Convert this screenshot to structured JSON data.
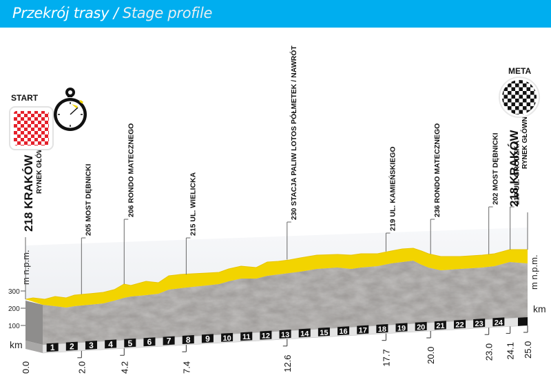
{
  "header": {
    "title_pl": "Przekrój trasy",
    "separator": " / ",
    "title_en": "Stage profile"
  },
  "start": {
    "label": "START",
    "flag": "red-white-checkered-flag"
  },
  "finish": {
    "label": "META",
    "flag": "black-white-checkered-flag"
  },
  "stopwatch": {
    "icon": "stopwatch-icon"
  },
  "axis": {
    "y_unit": "m n.p.m.",
    "y_ticks": [
      "300",
      "200",
      "100"
    ],
    "x_unit": "km",
    "right_y_unit": "m n.p.m.",
    "right_x_unit": "km"
  },
  "waypoints": [
    {
      "name": "218 KRAKÓW",
      "sub": "RYNEK GŁÓWNY",
      "km": "0.0"
    },
    {
      "name": "205 MOST DĘBNICKI",
      "km": "2.0"
    },
    {
      "name": "206 RONDO MATECZNEGO",
      "km": "4.2"
    },
    {
      "name": "215 UL. WIELICKA",
      "km": "7.4"
    },
    {
      "name": "230 STACJA PALIW LOTOS PÓŁMETEK / NAWRÓT",
      "km": "12.6"
    },
    {
      "name": "219 UL. KAMIEŃSKIEGO",
      "km": "17.7"
    },
    {
      "name": "236 RONDO MATECZNEGO",
      "km": "20.0"
    },
    {
      "name": "202 MOST DĘBNICKI",
      "km": "23.0"
    },
    {
      "name": "219 UL. GRODZKA",
      "km": "24.1"
    },
    {
      "name": "218 KRAKÓW",
      "sub": "RYNEK GŁÓWNY",
      "km": "25.0"
    }
  ],
  "km_markers": [
    "1",
    "2",
    "3",
    "4",
    "5",
    "6",
    "7",
    "8",
    "9",
    "10",
    "11",
    "12",
    "13",
    "14",
    "15",
    "16",
    "17",
    "18",
    "19",
    "20",
    "21",
    "22",
    "23",
    "24"
  ],
  "colors": {
    "header": "#00aeef",
    "road": "#f2d400",
    "rock": "#9a9795",
    "start_flag": "#e5202a"
  },
  "chart_data": {
    "type": "area",
    "title": "Przekrój trasy / Stage profile",
    "xlabel": "km",
    "ylabel": "m n.p.m.",
    "ylim": [
      0,
      350
    ],
    "xlim": [
      0,
      25
    ],
    "x": [
      0.0,
      2.0,
      4.2,
      7.4,
      12.6,
      17.7,
      20.0,
      23.0,
      24.1,
      25.0
    ],
    "values": [
      218,
      205,
      206,
      215,
      230,
      219,
      236,
      202,
      219,
      218
    ],
    "labels": [
      "Kraków Rynek Główny",
      "Most Dębnicki",
      "Rondo Matecznego",
      "ul. Wielicka",
      "Stacja paliw Lotos półmetek / nawrót",
      "ul. Kamieńskiego",
      "Rondo Matecznego",
      "Most Dębnicki",
      "ul. Grodzka",
      "Kraków Rynek Główny"
    ],
    "y_ticks": [
      100,
      200,
      300
    ],
    "x_ticks": [
      1,
      2,
      3,
      4,
      5,
      6,
      7,
      8,
      9,
      10,
      11,
      12,
      13,
      14,
      15,
      16,
      17,
      18,
      19,
      20,
      21,
      22,
      23,
      24
    ]
  }
}
